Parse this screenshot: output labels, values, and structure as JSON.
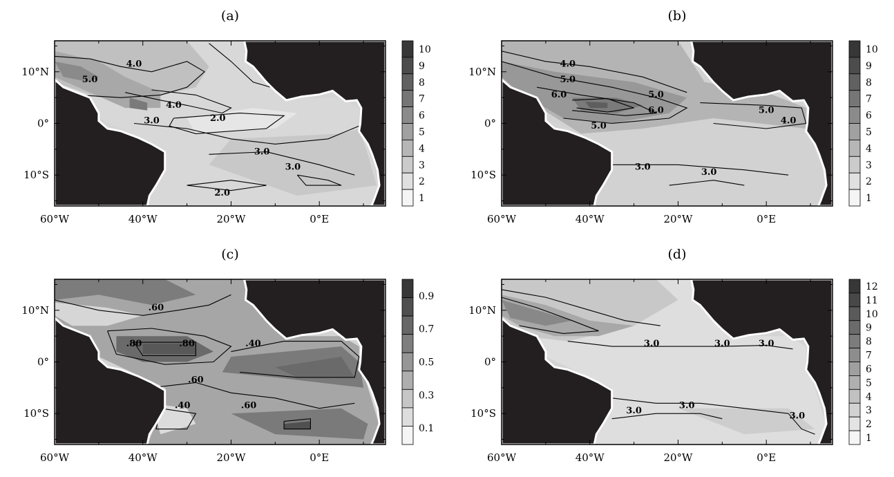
{
  "panels": [
    {
      "id": "a",
      "title": "(a)",
      "lon_ticks": [
        "60°W",
        "40°W",
        "20°W",
        "0°E"
      ],
      "lat_ticks": [
        "10°N",
        "0°",
        "10°S"
      ],
      "colorbar": {
        "levels": 10,
        "labels": [
          "10",
          "9",
          "8",
          "7",
          "6",
          "5",
          "4",
          "3",
          "2",
          "1"
        ]
      },
      "contour_labels": [
        {
          "text": "4.0",
          "lon": -42,
          "lat": 11
        },
        {
          "text": "5.0",
          "lon": -52,
          "lat": 8
        },
        {
          "text": "4.0",
          "lon": -33,
          "lat": 3
        },
        {
          "text": "2.0",
          "lon": -23,
          "lat": 0.5
        },
        {
          "text": "3.0",
          "lon": -38,
          "lat": 0
        },
        {
          "text": "3.0",
          "lon": -13,
          "lat": -6
        },
        {
          "text": "3.0",
          "lon": -6,
          "lat": -9
        },
        {
          "text": "2.0",
          "lon": -22,
          "lat": -14
        }
      ]
    },
    {
      "id": "b",
      "title": "(b)",
      "lon_ticks": [
        "60°W",
        "40°W",
        "20°W",
        "0°E"
      ],
      "lat_ticks": [
        "10°N",
        "0°",
        "10°S"
      ],
      "colorbar": {
        "levels": 10,
        "labels": [
          "10",
          "9",
          "8",
          "7",
          "6",
          "5",
          "4",
          "3",
          "2",
          "1"
        ]
      },
      "contour_labels": [
        {
          "text": "4.0",
          "lon": -45,
          "lat": 11
        },
        {
          "text": "5.0",
          "lon": -45,
          "lat": 8
        },
        {
          "text": "6.0",
          "lon": -47,
          "lat": 5
        },
        {
          "text": "5.0",
          "lon": -25,
          "lat": 5
        },
        {
          "text": "6.0",
          "lon": -25,
          "lat": 2
        },
        {
          "text": "5.0",
          "lon": -38,
          "lat": -1
        },
        {
          "text": "5.0",
          "lon": 0,
          "lat": 2
        },
        {
          "text": "4.0",
          "lon": 5,
          "lat": 0
        },
        {
          "text": "3.0",
          "lon": -28,
          "lat": -9
        },
        {
          "text": "3.0",
          "lon": -13,
          "lat": -10
        }
      ]
    },
    {
      "id": "c",
      "title": "(c)",
      "lon_ticks": [
        "60°W",
        "40°W",
        "20°W",
        "0°E"
      ],
      "lat_ticks": [
        "10°N",
        "0°",
        "10°S"
      ],
      "colorbar": {
        "levels": 9,
        "labels": [
          "0.9",
          "0.7",
          "0.5",
          "0.3",
          "0.1"
        ]
      },
      "contour_labels": [
        {
          "text": ".60",
          "lon": -37,
          "lat": 10
        },
        {
          "text": ".80",
          "lon": -42,
          "lat": 3
        },
        {
          "text": ".80",
          "lon": -30,
          "lat": 3
        },
        {
          "text": ".40",
          "lon": -15,
          "lat": 3
        },
        {
          "text": ".60",
          "lon": -28,
          "lat": -4
        },
        {
          "text": ".40",
          "lon": -31,
          "lat": -9
        },
        {
          "text": ".60",
          "lon": -16,
          "lat": -9
        }
      ]
    },
    {
      "id": "d",
      "title": "(d)",
      "lon_ticks": [
        "60°W",
        "40°W",
        "20°W",
        "0°E"
      ],
      "lat_ticks": [
        "10°N",
        "0°",
        "10°S"
      ],
      "colorbar": {
        "levels": 12,
        "labels": [
          "12",
          "11",
          "10",
          "9",
          "8",
          "7",
          "6",
          "5",
          "4",
          "3",
          "2",
          "1"
        ]
      },
      "contour_labels": [
        {
          "text": "3.0",
          "lon": -26,
          "lat": 3
        },
        {
          "text": "3.0",
          "lon": -10,
          "lat": 3
        },
        {
          "text": "3.0",
          "lon": 0,
          "lat": 3
        },
        {
          "text": "3.0",
          "lon": -30,
          "lat": -10
        },
        {
          "text": "3.0",
          "lon": -18,
          "lat": -9
        },
        {
          "text": "3.0",
          "lon": 7,
          "lat": -11
        }
      ]
    }
  ],
  "colors": {
    "land": "#231f20",
    "coast": "#ffffff",
    "line": "#000000"
  }
}
